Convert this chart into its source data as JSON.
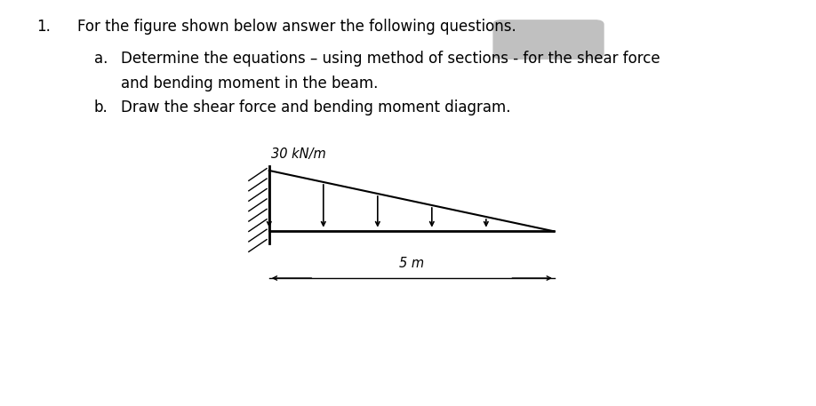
{
  "background_color": "#ffffff",
  "text_color": "#000000",
  "question_number": "1.",
  "main_question": "For the figure shown below answer the following questions.",
  "sub_a_prefix": "a.",
  "sub_a_text": "Determine the equations – using method of sections - for the shear force",
  "sub_a_text2": "and bending moment in the beam.",
  "sub_b_prefix": "b.",
  "sub_b_text": "Draw the shear force and bending moment diagram.",
  "load_label": "30 kN/m",
  "dim_label": "5 m",
  "gray_box_color": "#c0c0c0",
  "beam_lw": 2.0,
  "load_lw": 1.5,
  "hatch_lw": 1.0,
  "arrow_lw": 1.2,
  "dim_lw": 1.0
}
